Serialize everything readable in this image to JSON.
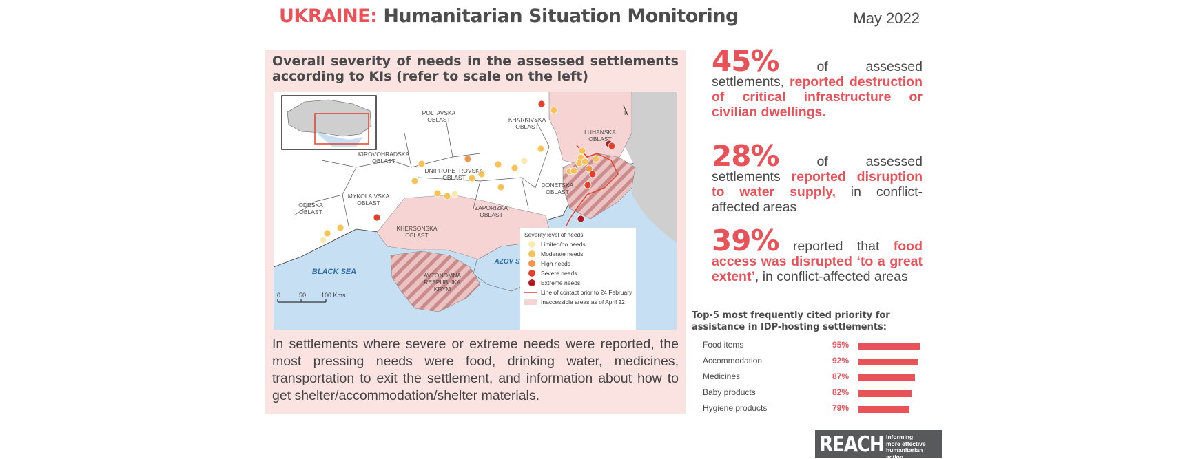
{
  "header": {
    "title_country": "UKRAINE:",
    "title_rest": "Humanitarian Situation Monitoring",
    "date": "May 2022"
  },
  "map_section": {
    "heading": "Overall severity of needs in the assessed settlements according to KIs (refer to scale on the left)",
    "labels": {
      "poltavska": [
        "POLTAVSKA",
        "OBLAST"
      ],
      "kharkivska": [
        "KHARKIVSKA",
        "OBLAST"
      ],
      "luhanska": [
        "LUHANSKA",
        "OBLAST"
      ],
      "kirovohradska": [
        "KIROVOHRADSKA",
        "OBLAST"
      ],
      "dnipropetrovska": [
        "DNIPROPETROVSKA",
        "OBLAST"
      ],
      "donetska": [
        "DONETSKA",
        "OBLAST"
      ],
      "odeska": [
        "ODESKA",
        "OBLAST"
      ],
      "mykolaivska": [
        "MYKOLAIVSKA",
        "OBLAST"
      ],
      "zaporizka": [
        "ZAPORIZKA",
        "OBLAST"
      ],
      "khersonska": [
        "KHERSONSKA",
        "OBLAST"
      ],
      "avtonomna": [
        "AVTONOMNA",
        "RESPUBLIKA",
        "KRYM"
      ],
      "black_sea": "BLACK SEA",
      "azov_sea": "AZOV SEA",
      "north": "N"
    },
    "scale": {
      "zero": "0",
      "fifty": "50",
      "hundred": "100 Kms"
    },
    "legend": {
      "title": "Severity level of needs",
      "items": [
        {
          "label": "Limited/no needs",
          "color": "#f8eab0"
        },
        {
          "label": "Moderate needs",
          "color": "#f7c25a"
        },
        {
          "label": "High needs",
          "color": "#f0954a"
        },
        {
          "label": "Severe needs",
          "color": "#e2402b"
        },
        {
          "label": "Extreme needs",
          "color": "#b31a22"
        }
      ],
      "line_label": "Line of contact prior to 24 February",
      "area_label": "Inaccessible areas as of April 22"
    },
    "note": "In settlements where severe or extreme needs were reported, the most pressing needs were food, drinking water, medicines, transportation to exit the settlement, and information about how to get shelter/accommodation/shelter materials."
  },
  "stats": [
    {
      "pct": "45%",
      "pre": " of assessed settlements, ",
      "hl": "reported destruction of critical infrastructure or civilian dwellings.",
      "post": ""
    },
    {
      "pct": "28%",
      "pre": " of assessed settlements ",
      "hl": "reported disruption to water supply,",
      "post": " in conflict-affected areas"
    },
    {
      "pct": "39%",
      "pre": " reported that ",
      "hl": "food access was disrupted ‘to a great extent’",
      "post": ", in conflict-affected areas"
    }
  ],
  "priorities": {
    "title": "Top-5 most frequently cited priority for assistance in IDP-hosting settlements:",
    "items": [
      {
        "label": "Food items",
        "pct_label": "95%",
        "value": 95
      },
      {
        "label": "Accommodation",
        "pct_label": "92%",
        "value": 92
      },
      {
        "label": "Medicines",
        "pct_label": "87%",
        "value": 87
      },
      {
        "label": "Baby products",
        "pct_label": "82%",
        "value": 82
      },
      {
        "label": "Hygiene products",
        "pct_label": "79%",
        "value": 79
      }
    ]
  },
  "logo": {
    "word": "REACH",
    "tagline": [
      "Informing",
      "more effective",
      "humanitarian action"
    ]
  }
}
